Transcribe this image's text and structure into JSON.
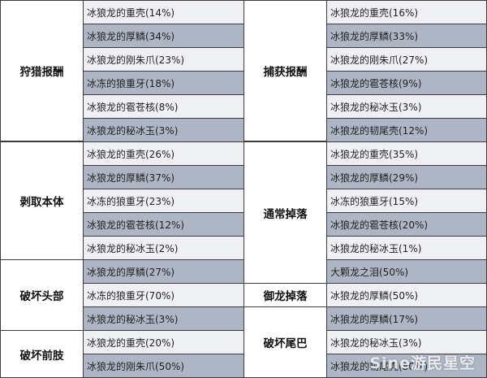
{
  "left_groups": [
    {
      "category": "狩猎报酬",
      "items": [
        "冰狼龙的重壳(14%)",
        "冰狼龙的厚鳞(34%)",
        "冰狼龙的刚朱爪(23%)",
        "冰冻的狼重牙(18%)",
        "冰狼龙的雹苍核(8%)",
        "冰狼龙的秘冰玉(3%)"
      ]
    },
    {
      "category": "剥取本体",
      "items": [
        "冰狼龙的重壳(26%)",
        "冰狼龙的厚鳞(37%)",
        "冰冻的狼重牙(23%)",
        "冰狼龙的雹苍核(12%)",
        "冰狼龙的秘冰玉(2%)"
      ]
    },
    {
      "category": "破坏头部",
      "items": [
        "冰狼龙的厚鳞(27%)",
        "冰冻的狼重牙(70%)",
        "冰狼龙的秘冰玉(3%)"
      ]
    },
    {
      "category": "破坏前肢",
      "items": [
        "冰狼龙的重壳(20%)",
        "冰狼龙的刚朱爪(50%)"
      ]
    }
  ],
  "right_groups": [
    {
      "category": "捕获报酬",
      "items": [
        "冰狼龙的重壳(16%)",
        "冰狼龙的厚鳞(33%)",
        "冰狼龙的刚朱爪(27%)",
        "冰狼龙的雹苍核(9%)",
        "冰狼龙的秘冰玉(3%)",
        "冰狼龙的韧尾壳(12%)"
      ]
    },
    {
      "category": "通常掉落",
      "items": [
        "冰狼龙的重壳(35%)",
        "冰狼龙的厚鳞(29%)",
        "冰冻的狼重牙(15%)",
        "冰狼龙的雹苍核(20%)",
        "冰狼龙的秘冰玉(1%)",
        "大颗龙之泪(50%)"
      ]
    },
    {
      "category": "御龙掉落",
      "items": [
        "冰狼龙的厚鳞(50%)"
      ]
    },
    {
      "category": "破坏尾巴",
      "items": [
        "冰狼龙的厚鳞(17%)",
        "冰狼龙的秘冰玉(3%)",
        "冰狼龙的韧尾壳(80%)"
      ]
    }
  ],
  "watermark": "Sine游民星空",
  "colors": {
    "row_light": "#eef0f4",
    "row_dark": "#aeb6c5",
    "border": "#3c3c3c"
  }
}
